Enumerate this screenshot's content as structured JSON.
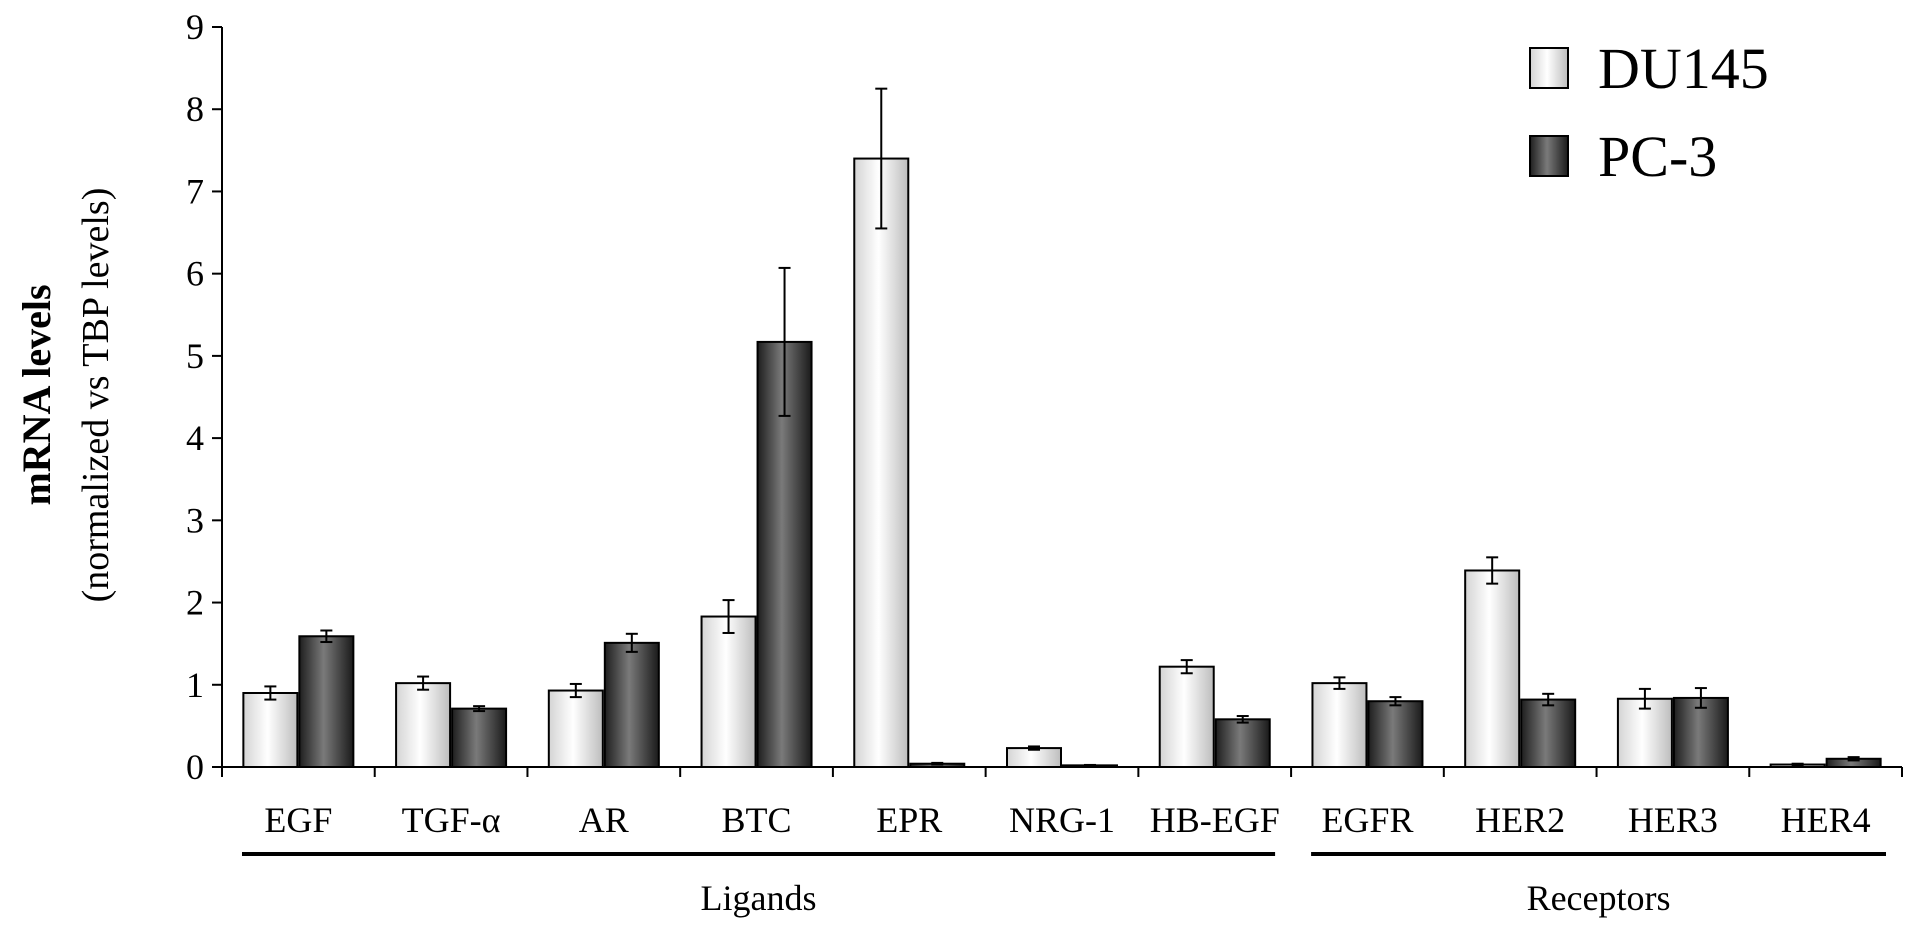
{
  "chart_data": {
    "type": "bar",
    "title": "",
    "ylabel": "mRNA levels",
    "ylabel_sub": "(normalized vs TBP levels)",
    "xlabel": "",
    "ylim": [
      0,
      9
    ],
    "yticks": [
      0,
      1,
      2,
      3,
      4,
      5,
      6,
      7,
      8,
      9
    ],
    "categories": [
      "EGF",
      "TGF-α",
      "AR",
      "BTC",
      "EPR",
      "NRG-1",
      "HB-EGF",
      "EGFR",
      "HER2",
      "HER3",
      "HER4"
    ],
    "groups": [
      {
        "label": "Ligands",
        "from": 0,
        "to": 6
      },
      {
        "label": "Receptors",
        "from": 7,
        "to": 10
      }
    ],
    "series": [
      {
        "name": "DU145",
        "color": "#f0f0f0",
        "values": [
          0.9,
          1.02,
          0.93,
          1.83,
          7.4,
          0.23,
          1.22,
          1.02,
          2.39,
          0.83,
          0.03
        ],
        "errors": [
          0.08,
          0.08,
          0.08,
          0.2,
          0.85,
          0.02,
          0.08,
          0.07,
          0.16,
          0.12,
          0.01
        ]
      },
      {
        "name": "PC-3",
        "color": "#404040",
        "values": [
          1.59,
          0.71,
          1.51,
          5.17,
          0.04,
          0.02,
          0.58,
          0.8,
          0.82,
          0.84,
          0.1
        ],
        "errors": [
          0.07,
          0.03,
          0.11,
          0.9,
          0.01,
          0.005,
          0.04,
          0.05,
          0.07,
          0.12,
          0.02
        ]
      }
    ],
    "legend": {
      "position": "top-right"
    },
    "grid": false
  }
}
